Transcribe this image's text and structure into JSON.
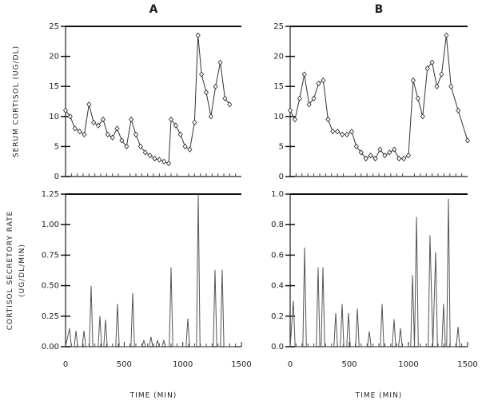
{
  "chart_data": [
    {
      "type": "line",
      "title": "A",
      "ylabel": [
        "SERUM CORTISOL (UG/DL)"
      ],
      "markers": "diamond",
      "x": [
        0,
        40,
        80,
        120,
        160,
        200,
        240,
        280,
        320,
        360,
        400,
        440,
        480,
        520,
        560,
        600,
        640,
        680,
        720,
        760,
        800,
        840,
        880,
        900,
        940,
        980,
        1020,
        1060,
        1100,
        1130,
        1160,
        1200,
        1240,
        1280,
        1320,
        1360,
        1400
      ],
      "series": [
        {
          "color": "#333333",
          "values": [
            11,
            10,
            8,
            7.5,
            7,
            12,
            9,
            8.5,
            9.5,
            7,
            6.5,
            8,
            6,
            5,
            9.5,
            7,
            5,
            4,
            3.5,
            3,
            2.8,
            2.5,
            2.2,
            9.5,
            8.5,
            7,
            5,
            4.5,
            9,
            23.5,
            17,
            14,
            10,
            15,
            19,
            13,
            12
          ]
        }
      ],
      "xlim": [
        0,
        1500
      ],
      "ylim": [
        0,
        25
      ],
      "yticks": [
        0,
        5,
        10,
        15,
        20,
        25
      ]
    },
    {
      "type": "line",
      "title": "B",
      "markers": "diamond",
      "x": [
        0,
        40,
        80,
        120,
        160,
        200,
        240,
        280,
        320,
        360,
        400,
        440,
        480,
        520,
        560,
        600,
        640,
        680,
        720,
        760,
        800,
        840,
        880,
        920,
        960,
        1000,
        1040,
        1080,
        1120,
        1160,
        1200,
        1240,
        1280,
        1320,
        1360,
        1420,
        1500
      ],
      "series": [
        {
          "color": "#333333",
          "values": [
            11,
            9.5,
            13,
            17,
            12,
            13,
            15.5,
            16,
            9.5,
            7.5,
            7.5,
            7,
            7,
            7.5,
            5,
            4,
            3,
            3.5,
            3,
            4.5,
            3.5,
            4,
            4.5,
            3,
            3,
            3.5,
            16,
            13,
            10,
            18,
            19,
            15,
            17,
            23.5,
            15,
            11,
            6
          ]
        }
      ],
      "xlim": [
        0,
        1500
      ],
      "ylim": [
        0,
        25
      ],
      "yticks": [
        0,
        5,
        10,
        15,
        20,
        25
      ]
    },
    {
      "type": "line",
      "ylabel": [
        "CORTISOL SECRETORY RATE",
        "(UG/DL/MIN)"
      ],
      "xlabel": "TIME (MIN)",
      "x": [
        0,
        34,
        50,
        74,
        89,
        104,
        142,
        157,
        172,
        203,
        218,
        233,
        278,
        293,
        308,
        326,
        341,
        356,
        428,
        443,
        458,
        558,
        573,
        588,
        653,
        668,
        683,
        714,
        729,
        744,
        769,
        784,
        799,
        823,
        838,
        853,
        885,
        900,
        915,
        1028,
        1043,
        1058,
        1117,
        1132,
        1147,
        1260,
        1275,
        1290,
        1321,
        1336,
        1351,
        1440
      ],
      "series": [
        {
          "color": "#555555",
          "values": [
            0,
            0.15,
            0,
            0,
            0.13,
            0,
            0,
            0.13,
            0,
            0,
            0.5,
            0,
            0,
            0.25,
            0,
            0,
            0.22,
            0,
            0,
            0.35,
            0,
            0,
            0.44,
            0,
            0,
            0.05,
            0,
            0,
            0.08,
            0,
            0,
            0.05,
            0,
            0,
            0.05,
            0,
            0,
            0.65,
            0,
            0,
            0.23,
            0,
            0,
            1.25,
            0,
            0,
            0.63,
            0,
            0,
            0.63,
            0,
            0
          ]
        }
      ],
      "xlim": [
        0,
        1500
      ],
      "xticks": [
        0,
        500,
        1000,
        1500
      ],
      "ylim": [
        0,
        1.25
      ],
      "yticks": [
        {
          "value": 0,
          "label": "0.00"
        },
        {
          "value": 0.25,
          "label": "0.25"
        },
        {
          "value": 0.5,
          "label": "0.50"
        },
        {
          "value": 0.75,
          "label": "0.75"
        },
        {
          "value": 1,
          "label": "1.00"
        },
        1.25
      ]
    },
    {
      "type": "line",
      "xlabel": "TIME (MIN)",
      "x": [
        0,
        27,
        42,
        107,
        122,
        137,
        221,
        236,
        251,
        262,
        277,
        292,
        370,
        385,
        400,
        424,
        439,
        454,
        478,
        493,
        508,
        553,
        568,
        583,
        654,
        669,
        684,
        762,
        777,
        792,
        863,
        878,
        893,
        917,
        932,
        947,
        1019,
        1034,
        1051,
        1068,
        1083,
        1167,
        1182,
        1206,
        1230,
        1245,
        1282,
        1297,
        1312,
        1323,
        1338,
        1353,
        1404,
        1419,
        1434
      ],
      "series": [
        {
          "color": "#555555",
          "values": [
            0,
            0.3,
            0,
            0,
            0.65,
            0,
            0,
            0.52,
            0,
            0,
            0.52,
            0,
            0,
            0.22,
            0,
            0,
            0.28,
            0,
            0,
            0.22,
            0,
            0,
            0.25,
            0,
            0,
            0.1,
            0,
            0,
            0.28,
            0,
            0,
            0.18,
            0,
            0,
            0.12,
            0,
            0,
            0.47,
            0,
            0.85,
            0,
            0,
            0.73,
            0,
            0.62,
            0,
            0,
            0.28,
            0,
            0,
            0.97,
            0,
            0,
            0.13,
            0
          ]
        }
      ],
      "xlim": [
        0,
        1500
      ],
      "xticks": [
        0,
        500,
        1000,
        1500
      ],
      "ylim": [
        0,
        1
      ],
      "yticks": [
        {
          "value": 0,
          "label": "0.0"
        },
        {
          "value": 0.2,
          "label": "0.2"
        },
        {
          "value": 0.4,
          "label": "0.4"
        },
        {
          "value": 0.6,
          "label": "0.6"
        },
        {
          "value": 0.8,
          "label": "0.8"
        },
        {
          "value": 1,
          "label": "1.0"
        }
      ]
    }
  ]
}
